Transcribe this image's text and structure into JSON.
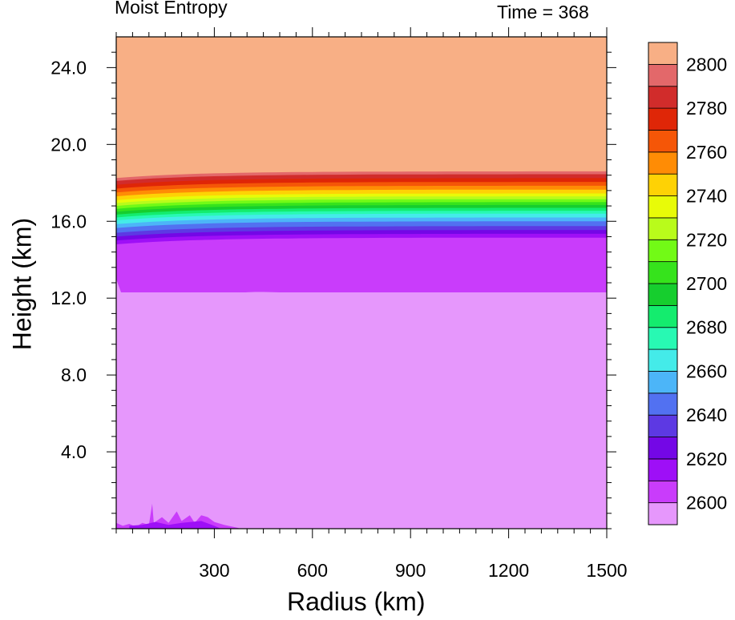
{
  "chart_data": {
    "type": "heatmap",
    "title_left": "Moist Entropy",
    "title_right": "Time = 368",
    "xlabel": "Radius (km)",
    "ylabel": "Height (km)",
    "xlim": [
      0,
      1500
    ],
    "ylim": [
      0,
      25.6
    ],
    "x_ticks": [
      300,
      600,
      900,
      1200,
      1500
    ],
    "x_tick_labels": [
      "300",
      "600",
      "900",
      "1200",
      "1500"
    ],
    "y_ticks": [
      4,
      8,
      12,
      16,
      20,
      24
    ],
    "y_tick_labels": [
      "4.0",
      "8.0",
      "12.0",
      "16.0",
      "20.0",
      "24.0"
    ],
    "colorbar": {
      "levels": [
        2600,
        2610,
        2620,
        2630,
        2640,
        2650,
        2660,
        2670,
        2680,
        2690,
        2700,
        2710,
        2720,
        2730,
        2740,
        2750,
        2760,
        2770,
        2780,
        2790,
        2800
      ],
      "tick_labels": [
        "2600",
        "2620",
        "2640",
        "2660",
        "2680",
        "2700",
        "2720",
        "2740",
        "2760",
        "2780",
        "2800"
      ],
      "colors": [
        "#e697fc",
        "#c93cfb",
        "#9e0ff7",
        "#7407e6",
        "#5d39e3",
        "#5271f1",
        "#4cb5f8",
        "#44ebe9",
        "#28f9b3",
        "#14ec6e",
        "#16ce2e",
        "#36e31c",
        "#72fa16",
        "#b9fb1b",
        "#e8fb08",
        "#fed205",
        "#ff8c05",
        "#f55607",
        "#df2607",
        "#d12c2b",
        "#e3686a",
        "#f8af85"
      ]
    },
    "bands": [
      {
        "from_height": 0,
        "to_height": 12.3,
        "value": 2600,
        "color": "#e697fc"
      },
      {
        "from_height": 12.3,
        "to_height": 15.2,
        "value": 2605,
        "color": "#c93cfb"
      },
      {
        "from_height": 15.2,
        "to_height": 18.6,
        "value": "2610-2790",
        "color": "gradient"
      },
      {
        "from_height": 18.6,
        "to_height": 25.6,
        "value": 2800,
        "color": "#f8af85"
      }
    ]
  }
}
